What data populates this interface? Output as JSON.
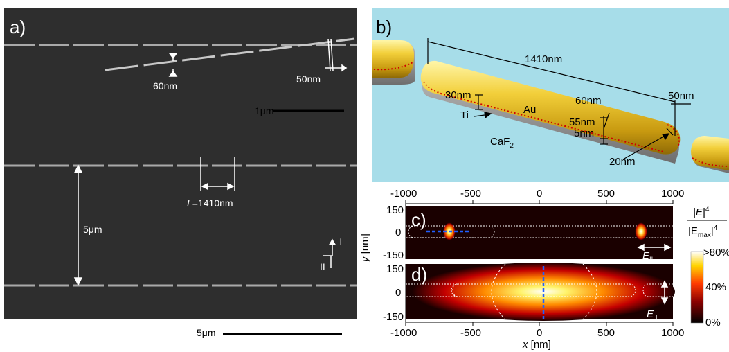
{
  "panel_a": {
    "letter": "a)",
    "inset_label_gap": "60nm",
    "inset_label_width": "50nm",
    "inset_scale": "1μm",
    "length_label_italic": "L",
    "length_label_rest": "=1410nm",
    "spacing_label": "5μm",
    "axis_perp": "⊥",
    "axis_parallel": "II",
    "scale_bar": "5μm"
  },
  "panel_b": {
    "letter": "b)",
    "length": "1410nm",
    "width_top": "60nm",
    "gap": "50nm",
    "height_ti": "30nm",
    "au": "Au",
    "ti": "Ti",
    "au_height": "55nm",
    "ti_height": "5nm",
    "substrate": "CaF",
    "substrate_sub": "2",
    "radius": "20nm"
  },
  "panel_c": {
    "letter": "c)",
    "field": "E",
    "field_sub": "||"
  },
  "panel_d": {
    "letter": "d)",
    "field": "E",
    "field_sub": "⊥"
  },
  "axes": {
    "x_ticks": [
      "-1000",
      "-500",
      "0",
      "500",
      "1000"
    ],
    "x_label_italic": "x",
    "x_label_unit": " [nm]",
    "y_label_italic": "y",
    "y_label_unit": " [nm]",
    "c_y_ticks": [
      "150",
      "0",
      "-150"
    ],
    "d_y_ticks": [
      "150",
      "0",
      "-150"
    ]
  },
  "colorbar": {
    "num": "|E|",
    "num_exp": "4",
    "den_pre": "|E",
    "den_sub": "max",
    "den_post": "|",
    "den_exp": "4",
    "top": ">80%",
    "mid": "40%",
    "bottom": "0%"
  }
}
